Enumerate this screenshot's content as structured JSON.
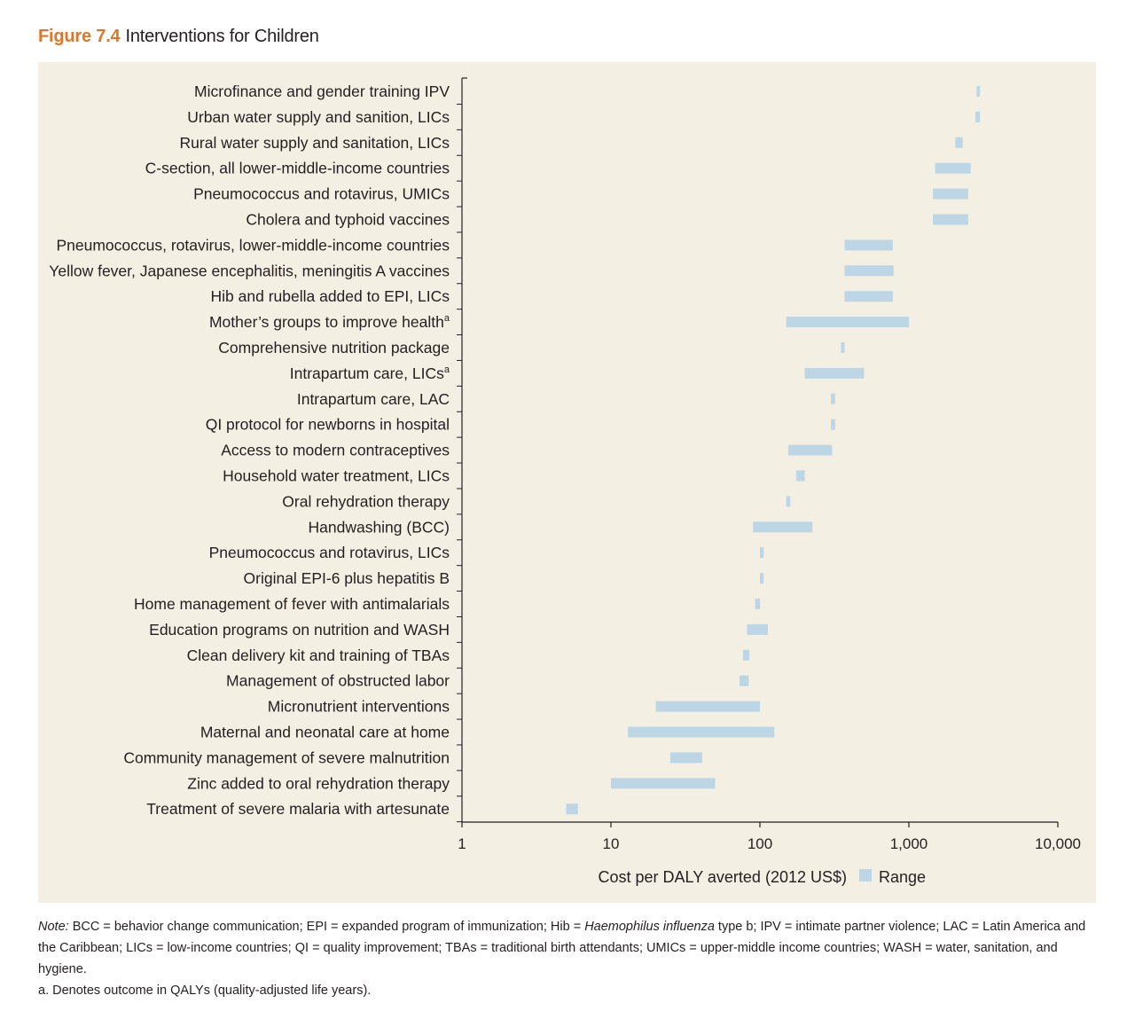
{
  "figure": {
    "number": "Figure 7.4",
    "title": "Interventions for Children"
  },
  "colors": {
    "bar": "#bcd6e6",
    "accent": "#d9782d",
    "panel": "#f4efe3",
    "axis": "#231f20"
  },
  "chart_data": {
    "type": "bar",
    "orientation": "horizontal-range",
    "xscale": "log",
    "xlim": [
      1,
      10000
    ],
    "xticks": [
      1,
      10,
      100,
      1000,
      10000
    ],
    "xtick_labels": [
      "1",
      "10",
      "100",
      "1,000",
      "10,000"
    ],
    "xlabel": "Cost per DALY averted (2012 US$)",
    "legend": {
      "label": "Range",
      "placement": "bottom"
    },
    "items": [
      {
        "label": "Microfinance and gender training IPV",
        "sup": "",
        "low": 2850,
        "high": 3000
      },
      {
        "label": "Urban water supply and sanition, LICs",
        "sup": "",
        "low": 2800,
        "high": 3000
      },
      {
        "label": "Rural water supply and sanitation, LICs",
        "sup": "",
        "low": 2050,
        "high": 2300
      },
      {
        "label": "C-section, all lower-middle-income countries",
        "sup": "",
        "low": 1500,
        "high": 2600
      },
      {
        "label": "Pneumococcus and rotavirus, UMICs",
        "sup": "",
        "low": 1450,
        "high": 2500
      },
      {
        "label": "Cholera and typhoid vaccines",
        "sup": "",
        "low": 1450,
        "high": 2500
      },
      {
        "label": "Pneumococcus, rotavirus, lower-middle-income countries",
        "sup": "",
        "low": 370,
        "high": 780
      },
      {
        "label": "Yellow fever, Japanese encephalitis, meningitis A vaccines",
        "sup": "",
        "low": 370,
        "high": 790
      },
      {
        "label": "Hib and rubella added to EPI, LICs",
        "sup": "",
        "low": 370,
        "high": 780
      },
      {
        "label": "Mother’s groups to improve health",
        "sup": "a",
        "low": 150,
        "high": 1000
      },
      {
        "label": "Comprehensive nutrition package",
        "sup": "",
        "low": 350,
        "high": 370
      },
      {
        "label": "Intrapartum care, LICs",
        "sup": "a",
        "low": 200,
        "high": 500
      },
      {
        "label": "Intrapartum care, LAC",
        "sup": "",
        "low": 300,
        "high": 320
      },
      {
        "label": "QI protocol for newborns in hospital",
        "sup": "",
        "low": 300,
        "high": 320
      },
      {
        "label": "Access to modern contraceptives",
        "sup": "",
        "low": 155,
        "high": 305
      },
      {
        "label": "Household water treatment, LICs",
        "sup": "",
        "low": 175,
        "high": 200
      },
      {
        "label": "Oral rehydration therapy",
        "sup": "",
        "low": 150,
        "high": 160
      },
      {
        "label": "Handwashing (BCC)",
        "sup": "",
        "low": 90,
        "high": 225
      },
      {
        "label": "Pneumococcus and rotavirus, LICs",
        "sup": "",
        "low": 100,
        "high": 106
      },
      {
        "label": "Original EPI-6 plus hepatitis B",
        "sup": "",
        "low": 100,
        "high": 106
      },
      {
        "label": "Home management of fever with antimalarials",
        "sup": "",
        "low": 93,
        "high": 100
      },
      {
        "label": "Education programs on nutrition and WASH",
        "sup": "",
        "low": 82,
        "high": 113
      },
      {
        "label": "Clean delivery kit and training of TBAs",
        "sup": "",
        "low": 77,
        "high": 85
      },
      {
        "label": "Management of obstructed labor",
        "sup": "",
        "low": 73,
        "high": 84
      },
      {
        "label": "Micronutrient interventions",
        "sup": "",
        "low": 20,
        "high": 100
      },
      {
        "label": "Maternal and neonatal care at home",
        "sup": "",
        "low": 13,
        "high": 125
      },
      {
        "label": "Community management of severe malnutrition",
        "sup": "",
        "low": 25,
        "high": 41
      },
      {
        "label": "Zinc added to oral rehydration therapy",
        "sup": "",
        "low": 10,
        "high": 50
      },
      {
        "label": "Treatment of severe malaria with artesunate",
        "sup": "",
        "low": 5,
        "high": 6
      }
    ]
  },
  "notes": {
    "lead": "Note:",
    "body_1": " BCC = behavior change communication; EPI = expanded program of immunization; Hib = ",
    "body_italic": "Haemophilus influenza",
    "body_2": " type b; IPV = intimate partner violence; LAC = Latin America and the Caribbean; LICs = low-income countries; QI = quality improvement; TBAs = traditional birth attendants; UMICs = upper-middle income countries; WASH = water, sanitation, and hygiene.",
    "footnote": "a. Denotes outcome in QALYs (quality-adjusted life years)."
  }
}
